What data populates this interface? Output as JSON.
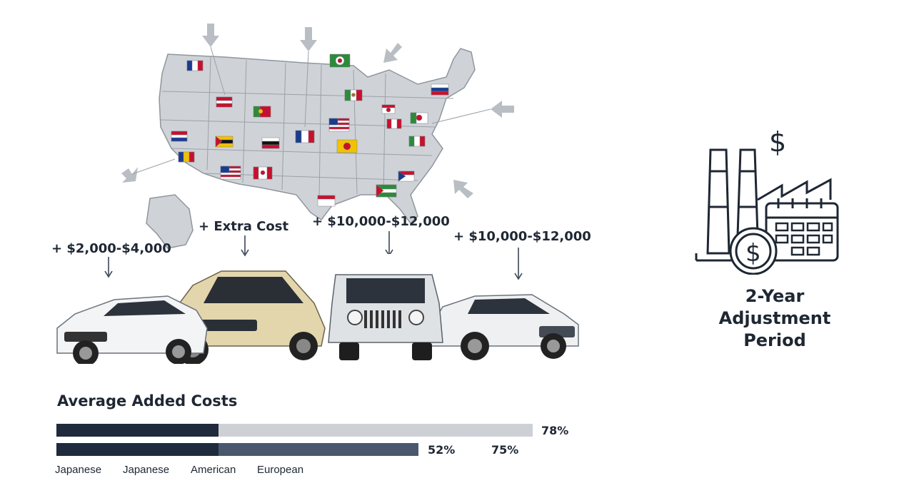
{
  "cost_labels": [
    {
      "text": "+ $2,000-$4,000"
    },
    {
      "text": "+ Extra Cost"
    },
    {
      "text": "+ $10,000-$12,000"
    },
    {
      "text": "+ $10,000-$12,000"
    }
  ],
  "icon": {
    "name": "factory-calendar-dollar-icon",
    "dollar_symbol": "$",
    "coin_symbol": "$"
  },
  "adjustment": {
    "line1": "2-Year",
    "line2": "Adjustment",
    "line3": "Period"
  },
  "chart_data": {
    "type": "bar",
    "title": "Average Added Costs",
    "bars": [
      {
        "dark_fraction": 0.34,
        "total_fraction": 1.0,
        "labels": [
          "78%"
        ]
      },
      {
        "dark_fraction": 0.34,
        "total_fraction": 0.76,
        "labels": [
          "52%",
          "75%"
        ]
      }
    ],
    "legend": [
      "Japanese",
      "Japanese",
      "American",
      "European"
    ],
    "colors": {
      "dark": "#1f2a3c",
      "light": "#cdd1d6",
      "mid": "#4a586e"
    }
  }
}
